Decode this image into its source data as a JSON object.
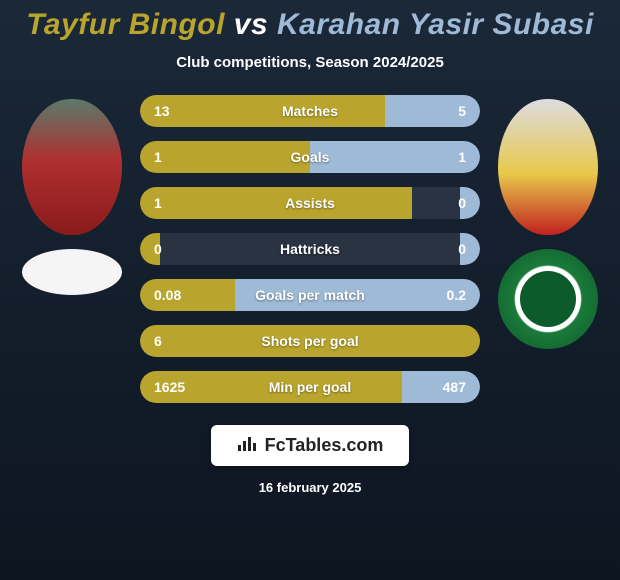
{
  "title": {
    "player_a": "Tayfur Bingol",
    "vs": "vs",
    "player_b": "Karahan Yasir Subasi",
    "color_a": "#b9a52d",
    "color_vs": "#ffffff",
    "color_b": "#9fbad6"
  },
  "subtitle": "Club competitions, Season 2024/2025",
  "player_a": {
    "avatar_bg": "linear-gradient(180deg,#5a7a6a 0%, #b03030 45%, #8a1a1a 100%)"
  },
  "player_b": {
    "avatar_bg": "linear-gradient(180deg,#dcdce0 0%, #e8c84a 55%, #c02020 100%)"
  },
  "colors": {
    "left_fill": "#b9a52d",
    "right_fill": "#9fbad6",
    "bar_bg": "rgba(50,60,75,0.7)",
    "background_top": "#1a2838",
    "background_bottom": "#0d1520"
  },
  "stats": [
    {
      "label": "Matches",
      "a": "13",
      "b": "5",
      "a_pct": 72,
      "b_pct": 28
    },
    {
      "label": "Goals",
      "a": "1",
      "b": "1",
      "a_pct": 50,
      "b_pct": 50
    },
    {
      "label": "Assists",
      "a": "1",
      "b": "0",
      "a_pct": 80,
      "b_pct": 6
    },
    {
      "label": "Hattricks",
      "a": "0",
      "b": "0",
      "a_pct": 6,
      "b_pct": 6
    },
    {
      "label": "Goals per match",
      "a": "0.08",
      "b": "0.2",
      "a_pct": 28,
      "b_pct": 72
    },
    {
      "label": "Shots per goal",
      "a": "6",
      "b": "",
      "a_pct": 100,
      "b_pct": 0
    },
    {
      "label": "Min per goal",
      "a": "1625",
      "b": "487",
      "a_pct": 77,
      "b_pct": 23
    }
  ],
  "footer": {
    "site": "FcTables.com",
    "date": "16 february 2025"
  }
}
